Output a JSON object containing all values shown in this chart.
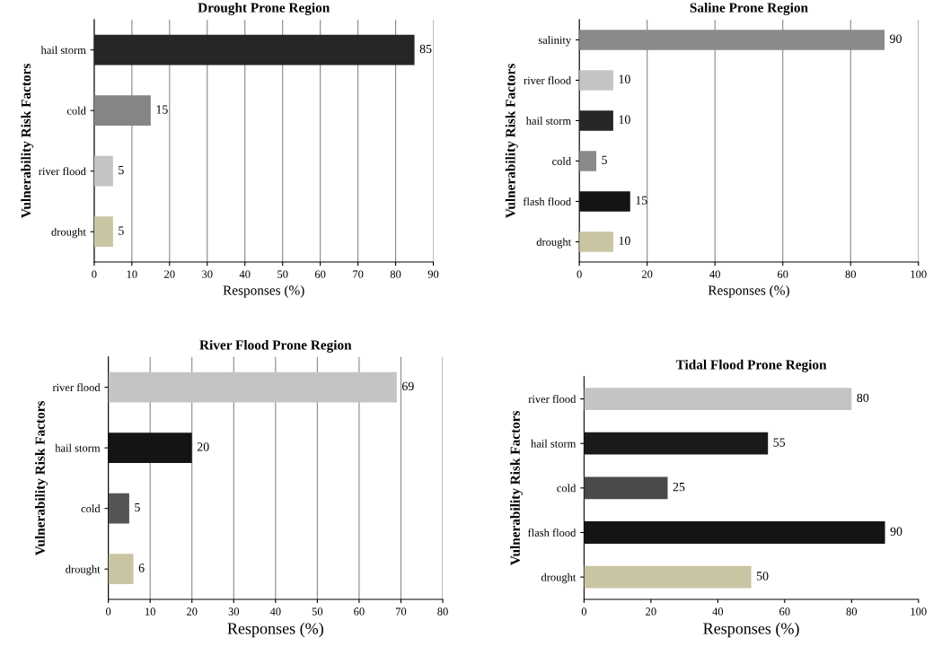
{
  "chart_data": [
    {
      "type": "bar",
      "orientation": "horizontal",
      "title": "Drought Prone Region",
      "xlabel": "Responses (%)",
      "ylabel": "Vulnerability Risk Factors",
      "categories": [
        "hail storm",
        "cold",
        "river flood",
        "drought"
      ],
      "values": [
        85,
        15,
        5,
        5
      ],
      "colors": [
        "#262626",
        "#858585",
        "#c4c4c4",
        "#c9c5a2"
      ],
      "xlim": [
        0,
        90
      ],
      "xticks": [
        0,
        10,
        20,
        30,
        40,
        50,
        60,
        70,
        80,
        90
      ],
      "grid": "x",
      "data_labels": true
    },
    {
      "type": "bar",
      "orientation": "horizontal",
      "title": "Saline Prone Region",
      "xlabel": "Responses (%)",
      "ylabel": "Vulnerability Risk Factors",
      "categories": [
        "salinity",
        "river flood",
        "hail storm",
        "cold",
        "flash flood",
        "drought"
      ],
      "values": [
        90,
        10,
        10,
        5,
        15,
        10
      ],
      "colors": [
        "#8a8a8a",
        "#c4c4c4",
        "#262626",
        "#8a8a8a",
        "#141414",
        "#c9c5a2"
      ],
      "xlim": [
        0,
        100
      ],
      "xticks": [
        0,
        20,
        40,
        60,
        80,
        100
      ],
      "grid": "x",
      "data_labels": true
    },
    {
      "type": "bar",
      "orientation": "horizontal",
      "title": "River Flood Prone Region",
      "xlabel": "Responses (%)",
      "ylabel": "Vulnerability Risk Factors",
      "categories": [
        "river flood",
        "hail storm",
        "cold",
        "drought"
      ],
      "values": [
        69,
        20,
        5,
        6
      ],
      "colors": [
        "#c4c4c4",
        "#141414",
        "#555555",
        "#c9c5a2"
      ],
      "xlim": [
        0,
        80
      ],
      "xticks": [
        0,
        10,
        20,
        30,
        40,
        50,
        60,
        70,
        80
      ],
      "grid": "x",
      "data_labels": true
    },
    {
      "type": "bar",
      "orientation": "horizontal",
      "title": "Tidal Flood Prone Region",
      "xlabel": "Responses (%)",
      "ylabel": "Vulnerability Risk Factors",
      "categories": [
        "river flood",
        "hail storm",
        "cold",
        "flash flood",
        "drought"
      ],
      "values": [
        80,
        55,
        25,
        90,
        50
      ],
      "colors": [
        "#c4c4c4",
        "#1a1a1a",
        "#4a4a4a",
        "#141414",
        "#c9c5a2"
      ],
      "xlim": [
        0,
        100
      ],
      "xticks": [
        0,
        20,
        40,
        60,
        80,
        100
      ],
      "data_labels": true
    }
  ]
}
